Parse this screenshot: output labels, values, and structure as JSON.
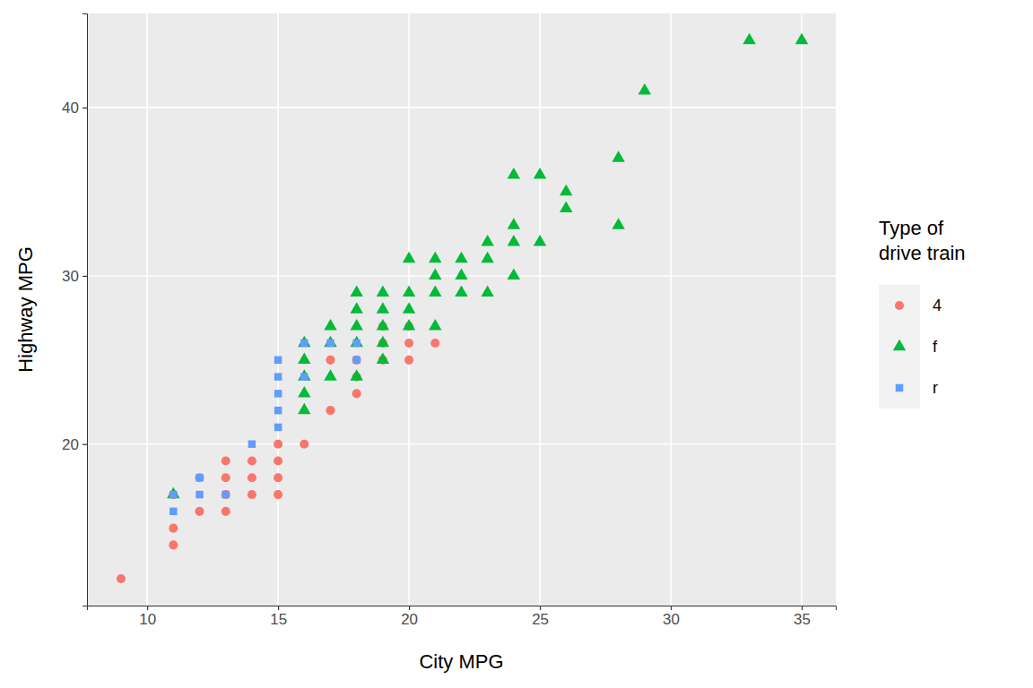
{
  "chart_data": {
    "type": "scatter",
    "x_label": "City MPG",
    "y_label": "Highway MPG",
    "legend_title": "Type of\ndrive train",
    "xlim": [
      7.7,
      36.3
    ],
    "ylim": [
      10.4,
      45.6
    ],
    "xticks": [
      10,
      15,
      20,
      25,
      30,
      35
    ],
    "yticks": [
      20,
      30,
      40
    ],
    "grid": true,
    "legend": "right",
    "series": [
      {
        "name": "4",
        "color": "#F8766D",
        "marker": "circle",
        "x": [
          9,
          11,
          11,
          11,
          12,
          12,
          13,
          13,
          13,
          13,
          14,
          14,
          14,
          15,
          15,
          15,
          15,
          16,
          17,
          17,
          18,
          18,
          18,
          19,
          19,
          19,
          20,
          20,
          20,
          21
        ],
        "values": [
          12,
          15,
          14,
          17,
          18,
          16,
          19,
          18,
          17,
          16,
          19,
          18,
          17,
          20,
          19,
          18,
          17,
          20,
          22,
          25,
          23,
          25,
          24,
          25,
          26,
          27,
          27,
          26,
          25,
          26
        ]
      },
      {
        "name": "f",
        "color": "#00BA38",
        "marker": "triangle",
        "x": [
          35,
          33,
          29,
          28,
          28,
          26,
          26,
          25,
          24,
          24,
          24,
          24,
          25,
          23,
          23,
          23,
          22,
          22,
          22,
          21,
          21,
          21,
          21,
          20,
          20,
          20,
          20,
          19,
          19,
          19,
          19,
          19,
          18,
          18,
          18,
          18,
          18,
          17,
          17,
          17,
          16,
          16,
          16,
          16,
          16,
          11
        ],
        "values": [
          44,
          44,
          41,
          37,
          33,
          35,
          34,
          36,
          36,
          33,
          32,
          30,
          32,
          32,
          31,
          29,
          31,
          30,
          29,
          31,
          30,
          29,
          27,
          31,
          29,
          28,
          27,
          29,
          28,
          27,
          26,
          25,
          29,
          28,
          27,
          26,
          24,
          27,
          26,
          24,
          26,
          25,
          24,
          23,
          22,
          17
        ]
      },
      {
        "name": "r",
        "color": "#619CFF",
        "marker": "square",
        "x": [
          11,
          11,
          12,
          12,
          13,
          14,
          15,
          15,
          15,
          15,
          15,
          16,
          16,
          17,
          18,
          18
        ],
        "values": [
          17,
          16,
          18,
          17,
          17,
          20,
          25,
          24,
          23,
          22,
          21,
          26,
          24,
          26,
          26,
          25
        ]
      }
    ]
  }
}
